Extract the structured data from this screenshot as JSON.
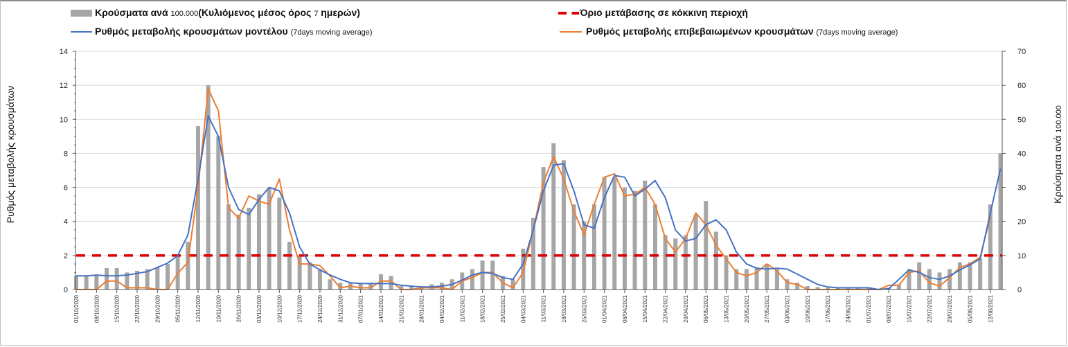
{
  "legend": {
    "bars_label": "Κρούσματα ανά",
    "bars_small1": "100.000",
    "bars_mid": "(Κυλιόμενος μέσος όρος",
    "bars_small2": "7",
    "bars_end": "ημερών)",
    "threshold_label": "Όριο μετάβασης σε κόκκινη περιοχή",
    "model_label": "Ρυθμός μεταβολής κρουσμάτων μοντέλου",
    "model_note": "(7days moving average)",
    "confirmed_label": "Ρυθμός μεταβολής επιβεβαιωμένων κρουσμάτων",
    "confirmed_note": "(7days moving average)"
  },
  "chart_data": {
    "type": "bar+line",
    "ylabel_left": "Ρυθμός μεταβολής κρουσμάτων",
    "ylabel_right_main": "Κρούσματα ανά",
    "ylabel_right_small": "100.000",
    "ylim_left": [
      0,
      14
    ],
    "yticks_left": [
      "0",
      "2",
      "4",
      "6",
      "8",
      "10",
      "12",
      "14"
    ],
    "ylim_right": [
      0,
      70
    ],
    "yticks_right": [
      "0",
      "10",
      "20",
      "30",
      "40",
      "50",
      "60",
      "70"
    ],
    "x_step_days": 3.5,
    "x_ticks": [
      "01/10/2020",
      "08/10/2020",
      "15/10/2020",
      "22/10/2020",
      "29/10/2020",
      "05/11/2020",
      "12/11/2020",
      "19/11/2020",
      "26/11/2020",
      "03/12/2020",
      "10/12/2020",
      "17/12/2020",
      "24/12/2020",
      "31/12/2020",
      "07/01/2021",
      "14/01/2021",
      "21/01/2021",
      "28/01/2021",
      "04/02/2021",
      "11/02/2021",
      "18/02/2021",
      "25/02/2021",
      "04/03/2021",
      "11/03/2021",
      "18/03/2021",
      "25/03/2021",
      "01/04/2021",
      "08/04/2021",
      "15/04/2021",
      "22/04/2021",
      "29/04/2021",
      "06/05/2021",
      "13/05/2021",
      "20/05/2021",
      "27/05/2021",
      "03/06/2021",
      "10/06/2021",
      "17/06/2021",
      "24/06/2021",
      "01/07/2021",
      "08/07/2021",
      "15/07/2021",
      "22/07/2021",
      "29/07/2021",
      "05/08/2021",
      "12/08/2021"
    ],
    "threshold": 2,
    "colors": {
      "bars": "#a6a6a6",
      "model": "#4472c4",
      "confirmed": "#ed7d31",
      "threshold": "#e00000"
    },
    "series": [
      {
        "name": "Κρούσματα ανά 100.000",
        "axis": "right",
        "kind": "bar",
        "values": [
          4,
          4,
          4,
          6.3,
          6.3,
          5,
          5.5,
          6,
          6.5,
          7.5,
          10,
          14,
          48,
          60,
          45,
          25,
          22,
          24,
          28,
          30,
          27,
          14,
          10,
          8,
          6,
          3,
          2,
          2,
          2,
          2,
          4.5,
          4,
          1,
          1,
          1,
          1.5,
          2,
          3,
          5,
          6,
          8.5,
          8.5,
          4,
          3,
          12,
          21,
          36,
          43,
          38,
          25,
          20,
          25,
          33,
          33,
          30,
          29,
          32,
          25,
          16,
          15,
          16,
          22,
          26,
          17,
          10,
          6,
          6,
          6.5,
          7.5,
          6,
          3,
          2,
          1,
          0.7,
          0.5,
          0.5,
          0.5,
          0.3,
          0.3,
          0.2,
          0.5,
          1.5,
          6,
          8,
          6,
          5,
          6,
          8,
          8,
          9,
          25,
          40
        ]
      },
      {
        "name": "Ρυθμός μεταβολής κρουσμάτων μοντέλου",
        "axis": "left",
        "kind": "line",
        "values": [
          0.8,
          0.8,
          0.85,
          0.8,
          0.8,
          0.85,
          0.95,
          1.05,
          1.3,
          1.55,
          2.0,
          3.2,
          6.5,
          10.2,
          9.0,
          6.0,
          4.7,
          4.4,
          5.3,
          6.0,
          5.8,
          4.5,
          2.5,
          1.5,
          1.15,
          0.85,
          0.6,
          0.4,
          0.35,
          0.35,
          0.35,
          0.35,
          0.25,
          0.2,
          0.15,
          0.15,
          0.2,
          0.3,
          0.55,
          0.85,
          1.0,
          0.95,
          0.7,
          0.6,
          1.5,
          3.5,
          5.8,
          7.3,
          7.4,
          5.8,
          3.8,
          3.6,
          5.4,
          6.7,
          6.6,
          5.5,
          5.9,
          6.4,
          5.4,
          3.5,
          2.85,
          3.0,
          3.8,
          4.1,
          3.5,
          2.2,
          1.5,
          1.25,
          1.2,
          1.25,
          1.2,
          0.9,
          0.6,
          0.3,
          0.15,
          0.1,
          0.1,
          0.1,
          0.1,
          0.0,
          0.05,
          0.6,
          1.15,
          1.0,
          0.7,
          0.6,
          0.8,
          1.15,
          1.45,
          1.8,
          4.5,
          7.1
        ]
      },
      {
        "name": "Ρυθμός μεταβολής επιβεβαιωμένων κρουσμάτων",
        "axis": "left",
        "kind": "line",
        "values": [
          0,
          0,
          0,
          0.5,
          0.5,
          0.1,
          0.1,
          0.1,
          0,
          0,
          0.95,
          1.6,
          6.0,
          11.8,
          10.5,
          4.8,
          4.2,
          5.5,
          5.2,
          5.0,
          6.5,
          3.5,
          1.5,
          1.5,
          1.4,
          0.8,
          0.1,
          0.2,
          0.1,
          0.1,
          0.5,
          0.5,
          0,
          0,
          0.1,
          0.1,
          0.1,
          0,
          0.5,
          0.7,
          1.0,
          1.0,
          0.4,
          0.1,
          1.0,
          3.5,
          6.3,
          7.8,
          6.5,
          4.6,
          3.2,
          5.0,
          6.6,
          6.8,
          5.5,
          5.6,
          6.0,
          5.0,
          3.0,
          2.2,
          3.0,
          4.5,
          3.8,
          2.6,
          1.8,
          1.0,
          0.8,
          1.0,
          1.5,
          1.1,
          0.4,
          0.3,
          0,
          0,
          0,
          0,
          0,
          0,
          0,
          0,
          0.25,
          0.25,
          1.0,
          1.1,
          0.4,
          0.2,
          0.7,
          1.3,
          1.5,
          1.9,
          4.3
        ]
      }
    ]
  }
}
